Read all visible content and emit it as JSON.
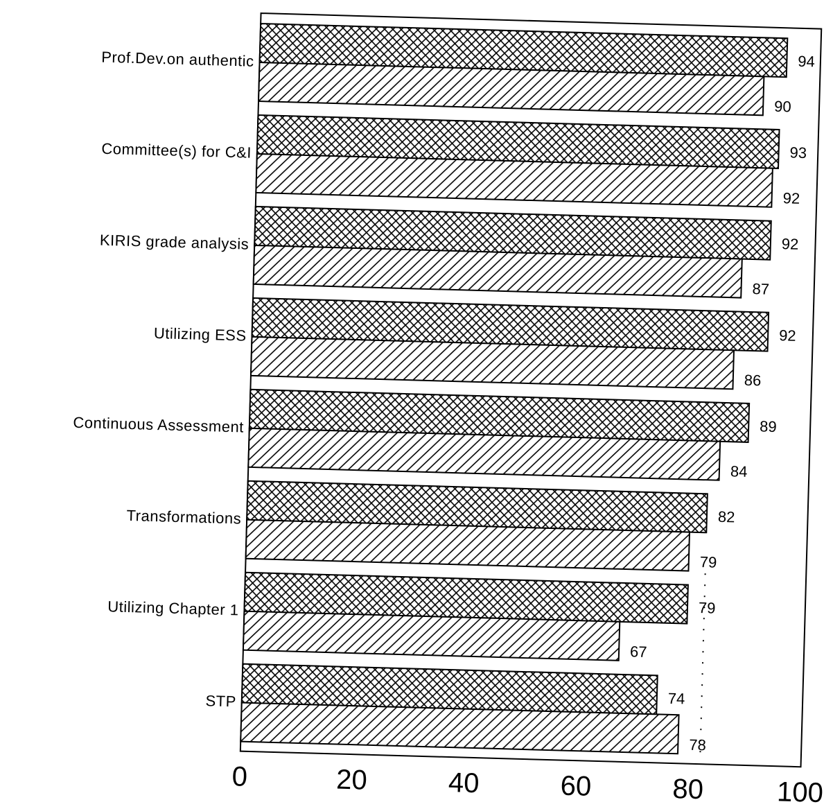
{
  "chart_data": {
    "type": "bar",
    "orientation": "horizontal",
    "title": "",
    "xlabel": "",
    "ylabel": "",
    "xlim": [
      0,
      100
    ],
    "x_ticks": [
      "0",
      "20",
      "40",
      "60",
      "80",
      "100"
    ],
    "categories": [
      "Prof.Dev.on authentic",
      "Committee(s) for C&I",
      "KIRIS grade analysis",
      "Utilizing ESS",
      "Continuous Assessment",
      "Transformations",
      "Utilizing Chapter 1",
      "STP"
    ],
    "series": [
      {
        "pattern": "crosshatch",
        "values": [
          94,
          93,
          92,
          92,
          89,
          82,
          79,
          74
        ],
        "labels": [
          "94",
          "93",
          "92",
          "92",
          "89",
          "82",
          "79",
          "74"
        ]
      },
      {
        "pattern": "diagonal-hatch",
        "values": [
          90,
          92,
          87,
          86,
          84,
          79,
          67,
          78
        ],
        "labels": [
          "90",
          "92",
          "87",
          "86",
          "84",
          "79",
          "67",
          "78"
        ]
      }
    ],
    "grid": false,
    "legend": "none",
    "colors": {
      "ink": "#000000",
      "background": "#ffffff"
    }
  }
}
